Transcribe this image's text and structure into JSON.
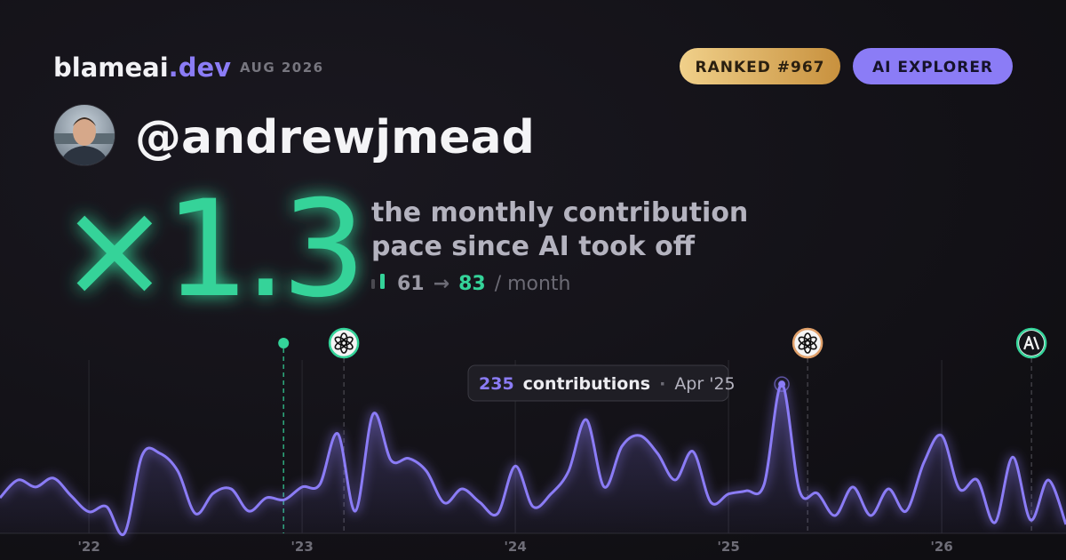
{
  "header": {
    "brand": "blameai",
    "brand_tld": ".dev",
    "date": "AUG 2026",
    "rank_badge": "RANKED #967",
    "tier_badge": "AI EXPLORER"
  },
  "profile": {
    "username": "@andrewjmead"
  },
  "headline": {
    "multiplier": "×1.3",
    "description": [
      "the monthly contribution",
      "pace since AI took off"
    ],
    "before": 61,
    "arrow": "→",
    "after": 83,
    "unit": "/ month"
  },
  "chart_data": {
    "type": "line",
    "x": [
      2021.583,
      2021.667,
      2021.75,
      2021.833,
      2021.917,
      2022,
      2022.083,
      2022.167,
      2022.25,
      2022.333,
      2022.417,
      2022.5,
      2022.583,
      2022.667,
      2022.75,
      2022.833,
      2022.917,
      2023,
      2023.083,
      2023.167,
      2023.25,
      2023.333,
      2023.417,
      2023.5,
      2023.583,
      2023.667,
      2023.75,
      2023.833,
      2023.917,
      2024,
      2024.083,
      2024.167,
      2024.25,
      2024.333,
      2024.417,
      2024.5,
      2024.583,
      2024.667,
      2024.75,
      2024.833,
      2024.917,
      2025,
      2025.083,
      2025.167,
      2025.25,
      2025.333,
      2025.417,
      2025.5,
      2025.583,
      2025.667,
      2025.75,
      2025.833,
      2025.917,
      2026,
      2026.083,
      2026.167,
      2026.25,
      2026.333,
      2026.417,
      2026.5,
      2026.583
    ],
    "series": [
      {
        "name": "contributions",
        "color": "#8b7cf6",
        "values": [
          56,
          84,
          73,
          87,
          59,
          34,
          42,
          0,
          123,
          126,
          98,
          31,
          63,
          70,
          35,
          56,
          53,
          73,
          77,
          157,
          35,
          188,
          115,
          118,
          98,
          48,
          70,
          49,
          31,
          106,
          42,
          62,
          98,
          179,
          73,
          137,
          154,
          126,
          84,
          129,
          49,
          62,
          67,
          77,
          235,
          67,
          63,
          28,
          73,
          28,
          70,
          35,
          112,
          154,
          70,
          84,
          17,
          120,
          21,
          84,
          14
        ]
      }
    ],
    "xlim": [
      2021.583,
      2026.583
    ],
    "ylim": [
      0,
      280
    ],
    "xticks": [
      {
        "value": 2022,
        "label": "'22"
      },
      {
        "value": 2023,
        "label": "'23"
      },
      {
        "value": 2024,
        "label": "'24"
      },
      {
        "value": 2025,
        "label": "'25"
      },
      {
        "value": 2026,
        "label": "'26"
      }
    ],
    "grid": true,
    "events": [
      {
        "x": 2022.913,
        "color": "#34d399",
        "icon": "dot"
      },
      {
        "x": 2023.196,
        "color": "#34d399",
        "icon": "openai"
      },
      {
        "x": 2025.371,
        "color": "#e0a06a",
        "icon": "openai"
      },
      {
        "x": 2026.421,
        "color": "#34d399",
        "icon": "anthropic"
      }
    ],
    "tooltip": {
      "index": 44,
      "unit": "contributions",
      "separator": "·",
      "date": "Apr '25"
    }
  }
}
